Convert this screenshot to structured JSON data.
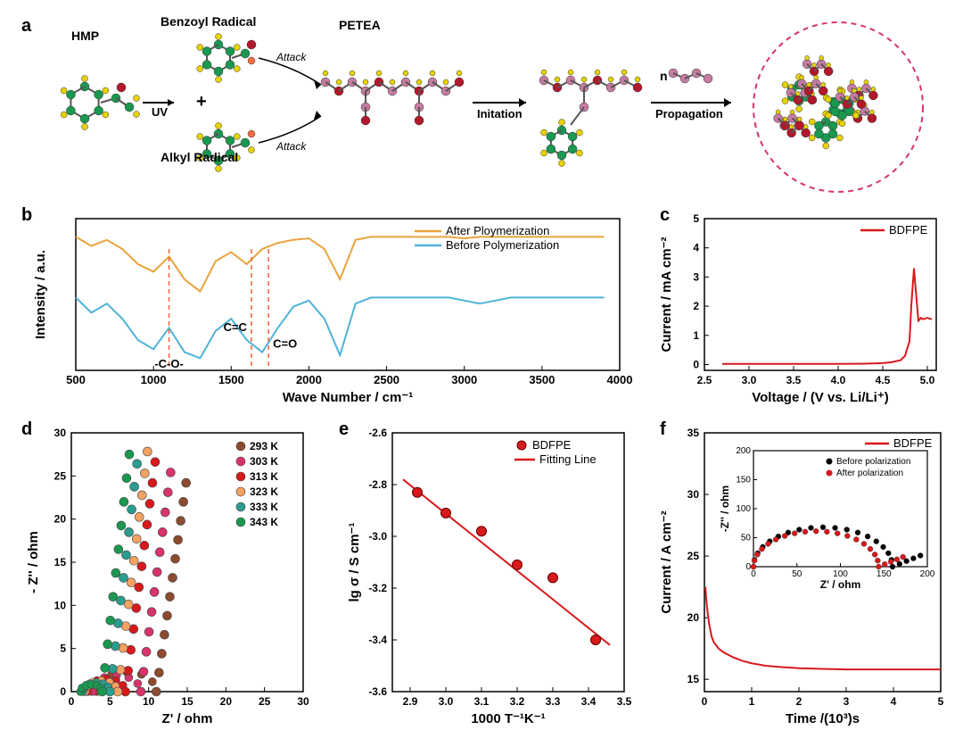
{
  "panel_a": {
    "label": "a",
    "mol1": "HMP",
    "mol2": "Benzoyl Radical",
    "mol3": "Alkyl Radical",
    "mol4": "PETEA",
    "step1": "UV",
    "attack": "Attack",
    "step2": "Initation",
    "step3": "Propagation",
    "n": "n",
    "circle_stroke": "#d6336c",
    "atom_green": "#1a9850",
    "atom_yellow": "#e6d200",
    "atom_red": "#b2182b",
    "atom_pink": "#c67ba0",
    "atom_orange": "#f46d43"
  },
  "panel_b": {
    "label": "b",
    "title": "",
    "legend1": "After Ploymerization",
    "legend2": "Before Polymerization",
    "color1": "#e8a33d",
    "color2": "#4fb3d9",
    "xlabel": "Wave Number / cm⁻¹",
    "ylabel": "Intensity / a.u.",
    "xticks": [
      500,
      1000,
      1500,
      2000,
      2500,
      3000,
      3500,
      4000
    ],
    "ann1": "-C-O-",
    "ann2": "C=C",
    "ann3": "C=O",
    "dash_color": "#e8663d",
    "after_y": [
      0.78,
      0.72,
      0.76,
      0.7,
      0.6,
      0.55,
      0.65,
      0.5,
      0.42,
      0.62,
      0.68,
      0.6,
      0.7,
      0.74,
      0.76,
      0.77,
      0.7,
      0.5,
      0.76,
      0.78,
      0.78,
      0.78,
      0.78,
      0.78,
      0.78,
      0.77,
      0.78,
      0.78,
      0.78,
      0.78,
      0.78,
      0.78,
      0.78,
      0.78,
      0.78
    ],
    "before_y": [
      0.38,
      0.28,
      0.34,
      0.24,
      0.1,
      0.04,
      0.18,
      0.02,
      -0.02,
      0.16,
      0.24,
      0.1,
      0.02,
      0.18,
      0.32,
      0.36,
      0.24,
      0.0,
      0.34,
      0.38,
      0.38,
      0.38,
      0.38,
      0.38,
      0.38,
      0.36,
      0.34,
      0.36,
      0.38,
      0.38,
      0.38,
      0.38,
      0.38,
      0.38,
      0.38
    ]
  },
  "panel_c": {
    "label": "c",
    "legend": "BDFPE",
    "color": "#d7191c",
    "xlabel": "Voltage / (V vs. Li/Li⁺)",
    "ylabel": "Current / mA cm⁻²",
    "xticks": [
      2.5,
      3.0,
      3.5,
      4.0,
      4.5,
      5.0
    ],
    "yticks": [
      0,
      1,
      2,
      3,
      4,
      5
    ],
    "xlim": [
      2.5,
      5.1
    ],
    "ylim": [
      -0.2,
      5
    ],
    "data_x": [
      2.7,
      3.0,
      3.5,
      4.0,
      4.3,
      4.5,
      4.6,
      4.7,
      4.75,
      4.8,
      4.82,
      4.85,
      4.88,
      4.9,
      4.93,
      4.95,
      5.0,
      5.05
    ],
    "data_y": [
      0.02,
      0.02,
      0.02,
      0.02,
      0.03,
      0.05,
      0.08,
      0.15,
      0.3,
      0.8,
      2.0,
      3.3,
      2.2,
      1.5,
      1.6,
      1.55,
      1.6,
      1.55
    ]
  },
  "panel_d": {
    "label": "d",
    "xlabel": "Z' / ohm",
    "ylabel": "- Z'' / ohm",
    "xticks": [
      0,
      5,
      10,
      15,
      20,
      25,
      30
    ],
    "yticks": [
      0,
      5,
      10,
      15,
      20,
      25,
      30
    ],
    "xlim": [
      0,
      30
    ],
    "ylim": [
      0,
      30
    ],
    "series": [
      {
        "name": "293 K",
        "color": "#8c4a2f",
        "x0": 11,
        "slope": 4.0
      },
      {
        "name": "303 K",
        "color": "#d7336c",
        "x0": 9,
        "slope": 4.2
      },
      {
        "name": "313 K",
        "color": "#d7191c",
        "x0": 7,
        "slope": 4.4
      },
      {
        "name": "323 K",
        "color": "#f4a261",
        "x0": 6,
        "slope": 4.6
      },
      {
        "name": "333 K",
        "color": "#2a9d8f",
        "x0": 5,
        "slope": 4.8
      },
      {
        "name": "343 K",
        "color": "#1a9850",
        "x0": 4,
        "slope": 5.0
      }
    ]
  },
  "panel_e": {
    "label": "e",
    "legend1": "BDFPE",
    "legend2": "Fitting Line",
    "color": "#d7191c",
    "xlabel": "1000 T⁻¹K⁻¹",
    "ylabel": "lg σ / S cm⁻¹",
    "xticks": [
      2.9,
      3.0,
      3.1,
      3.2,
      3.3,
      3.4,
      3.5
    ],
    "yticks": [
      -3.6,
      -3.4,
      -3.2,
      -3.0,
      -2.8,
      -2.6
    ],
    "xlim": [
      2.85,
      3.5
    ],
    "ylim": [
      -3.6,
      -2.6
    ],
    "points_x": [
      2.92,
      3.0,
      3.1,
      3.2,
      3.3,
      3.42
    ],
    "points_y": [
      -2.83,
      -2.91,
      -2.98,
      -3.11,
      -3.16,
      -3.4
    ],
    "line_x": [
      2.88,
      3.46
    ],
    "line_y": [
      -2.78,
      -3.42
    ]
  },
  "panel_f": {
    "label": "f",
    "legend": "BDFPE",
    "color": "#d7191c",
    "xlabel": "Time /(10³)s",
    "ylabel": "Current / A cm⁻²",
    "xticks": [
      0,
      1,
      2,
      3,
      4,
      5
    ],
    "yticks": [
      15,
      20,
      25,
      30,
      35
    ],
    "xlim": [
      0,
      5
    ],
    "ylim": [
      14,
      35
    ],
    "data_x": [
      0.02,
      0.05,
      0.1,
      0.15,
      0.2,
      0.3,
      0.4,
      0.6,
      0.8,
      1.0,
      1.3,
      1.6,
      2.0,
      2.5,
      3.0,
      3.5,
      4.0,
      4.5,
      5.0
    ],
    "data_y": [
      22.5,
      21.0,
      19.5,
      18.5,
      18.0,
      17.5,
      17.2,
      16.8,
      16.5,
      16.3,
      16.1,
      16.0,
      15.9,
      15.85,
      15.8,
      15.8,
      15.8,
      15.8,
      15.8
    ],
    "inset": {
      "xlabel": "Z' / ohm",
      "ylabel": "-Z'' / ohm",
      "xticks": [
        0,
        50,
        100,
        150,
        200
      ],
      "yticks": [
        0,
        50,
        100,
        150,
        200
      ],
      "legend1": "Before polarization",
      "legend2": "After polarization",
      "color1": "#000000",
      "color2": "#d7191c"
    }
  },
  "fonts": {
    "label_pt": 14,
    "tick_pt": 12,
    "panel_pt": 20
  }
}
